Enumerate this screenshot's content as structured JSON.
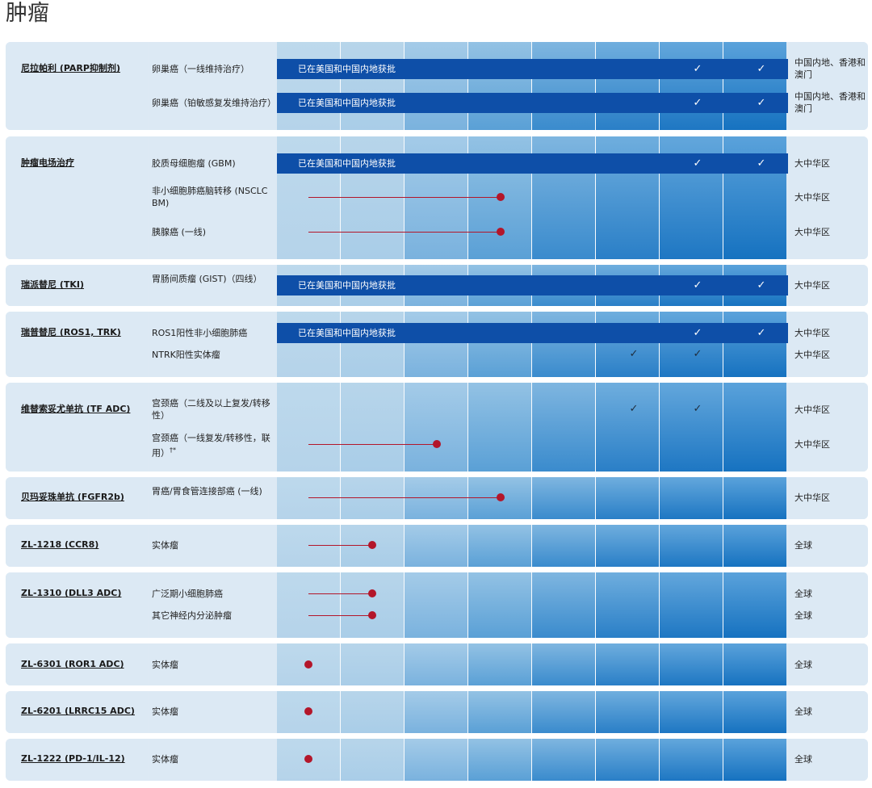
{
  "page_title": "肿瘤",
  "approved_text": "已在美国和中国内地获批",
  "colors": {
    "approved_bar": "#0e4fa8",
    "progress": "#b3162a",
    "label_bg": "#dce9f4"
  },
  "phase_count": 8,
  "groups": [
    {
      "drug": "尼拉帕利 (PARP抑制剂)",
      "rows": [
        {
          "indication": "卵巢癌（一线维持治疗）",
          "region": "中国内地、香港和澳门",
          "status": "approved",
          "checks": [
            6,
            7
          ]
        },
        {
          "indication": "卵巢癌（铂敏感复发维持治疗）",
          "region": "中国内地、香港和澳门",
          "status": "approved",
          "checks": [
            6,
            7
          ]
        }
      ]
    },
    {
      "drug": "肿瘤电场治疗",
      "rows": [
        {
          "indication": "胶质母细胞瘤 (GBM)",
          "region": "大中华区",
          "status": "approved",
          "checks": [
            6,
            7
          ]
        },
        {
          "indication": "非小细胞肺癌脑转移 (NSCLC BM)",
          "region": "大中华区",
          "status": "progress",
          "phase": 3
        },
        {
          "indication": "胰腺癌 (一线)",
          "region": "大中华区",
          "status": "progress",
          "phase": 3
        }
      ]
    },
    {
      "drug": "瑞派替尼 (TKI)",
      "rows": [
        {
          "indication": "胃肠间质瘤 (GIST)（四线）",
          "region": "大中华区",
          "status": "approved",
          "checks": [
            6,
            7
          ]
        }
      ]
    },
    {
      "drug": "瑞普替尼 (ROS1, TRK)",
      "rows": [
        {
          "indication": "ROS1阳性非小细胞肺癌",
          "region": "大中华区",
          "status": "approved",
          "checks": [
            6,
            7
          ]
        },
        {
          "indication": "NTRK阳性实体瘤",
          "region": "大中华区",
          "status": "checks",
          "checks": [
            5,
            6
          ]
        }
      ]
    },
    {
      "drug": "维替索妥尤单抗 (TF ADC)",
      "rows": [
        {
          "indication": "宫颈癌（二线及以上复发/转移性）",
          "region": "大中华区",
          "status": "checks",
          "checks": [
            5,
            6
          ]
        },
        {
          "indication": "宫颈癌（一线复发/转移性，联用）",
          "note": "†*",
          "region": "大中华区",
          "status": "progress",
          "phase": 2
        }
      ]
    },
    {
      "drug": "贝玛妥珠单抗 (FGFR2b)",
      "rows": [
        {
          "indication": "胃癌/胃食管连接部癌 (一线)",
          "region": "大中华区",
          "status": "progress",
          "phase": 3
        }
      ]
    },
    {
      "drug": "ZL-1218 (CCR8)",
      "rows": [
        {
          "indication": "实体瘤",
          "region": "全球",
          "status": "progress",
          "phase": 1
        }
      ]
    },
    {
      "drug": "ZL-1310 (DLL3 ADC)",
      "rows": [
        {
          "indication": "广泛期小细胞肺癌",
          "region": "全球",
          "status": "progress",
          "phase": 1
        },
        {
          "indication": "其它神经内分泌肿瘤",
          "region": "全球",
          "status": "progress",
          "phase": 1
        }
      ]
    },
    {
      "drug": "ZL-6301 (ROR1 ADC)",
      "rows": [
        {
          "indication": "实体瘤",
          "region": "全球",
          "status": "progress",
          "phase": 0
        }
      ]
    },
    {
      "drug": "ZL-6201 (LRRC15 ADC)",
      "rows": [
        {
          "indication": "实体瘤",
          "region": "全球",
          "status": "progress",
          "phase": 0
        }
      ]
    },
    {
      "drug": "ZL-1222 (PD-1/IL-12)",
      "rows": [
        {
          "indication": "实体瘤",
          "region": "全球",
          "status": "progress",
          "phase": 0
        }
      ]
    }
  ]
}
